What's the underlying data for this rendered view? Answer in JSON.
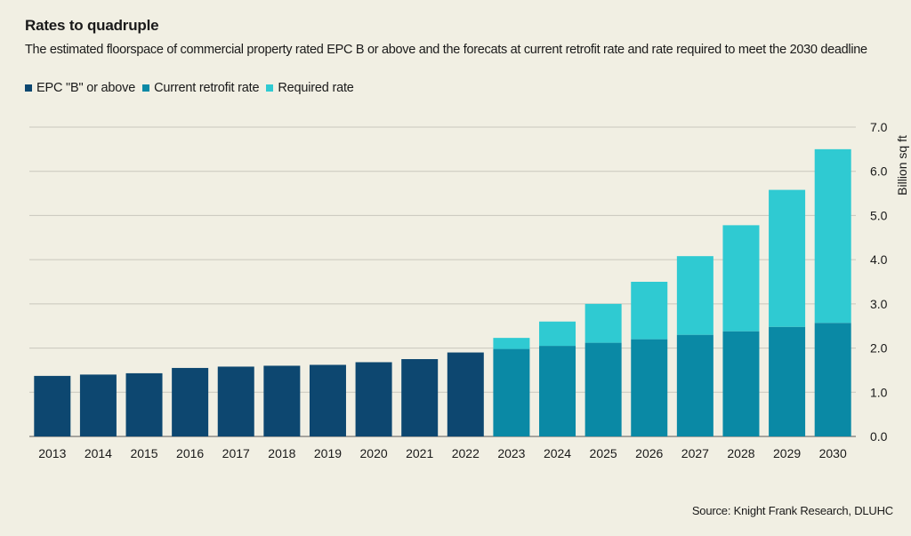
{
  "chart_data": {
    "type": "bar",
    "stacked": true,
    "title": "Rates to quadruple",
    "subtitle": "The estimated floorspace of commercial property rated EPC B or above and the forecats at current retrofit rate and rate required to meet the 2030 deadline",
    "categories": [
      "2013",
      "2014",
      "2015",
      "2016",
      "2017",
      "2018",
      "2019",
      "2020",
      "2021",
      "2022",
      "2023",
      "2024",
      "2025",
      "2026",
      "2027",
      "2028",
      "2029",
      "2030"
    ],
    "series": [
      {
        "name": "EPC \"B\" or above",
        "color": "#0d4770",
        "values": [
          1.37,
          1.4,
          1.43,
          1.55,
          1.58,
          1.6,
          1.62,
          1.68,
          1.75,
          1.9,
          0,
          0,
          0,
          0,
          0,
          0,
          0,
          0
        ]
      },
      {
        "name": "Current retrofit rate",
        "color": "#0a89a5",
        "values": [
          0,
          0,
          0,
          0,
          0,
          0,
          0,
          0,
          0,
          0,
          1.98,
          2.05,
          2.12,
          2.2,
          2.3,
          2.38,
          2.48,
          2.57
        ]
      },
      {
        "name": "Required rate",
        "color": "#2fcad2",
        "values": [
          0,
          0,
          0,
          0,
          0,
          0,
          0,
          0,
          0,
          0,
          0.25,
          0.55,
          0.88,
          1.3,
          1.78,
          2.4,
          3.1,
          3.93
        ]
      }
    ],
    "ylabel": "Billion sq ft",
    "ylim": [
      0,
      7
    ],
    "yticks": [
      "0.0",
      "1.0",
      "2.0",
      "3.0",
      "4.0",
      "5.0",
      "6.0",
      "7.0"
    ],
    "grid": true,
    "legend": "top-left",
    "source": "Source: Knight Frank Research, DLUHC"
  }
}
